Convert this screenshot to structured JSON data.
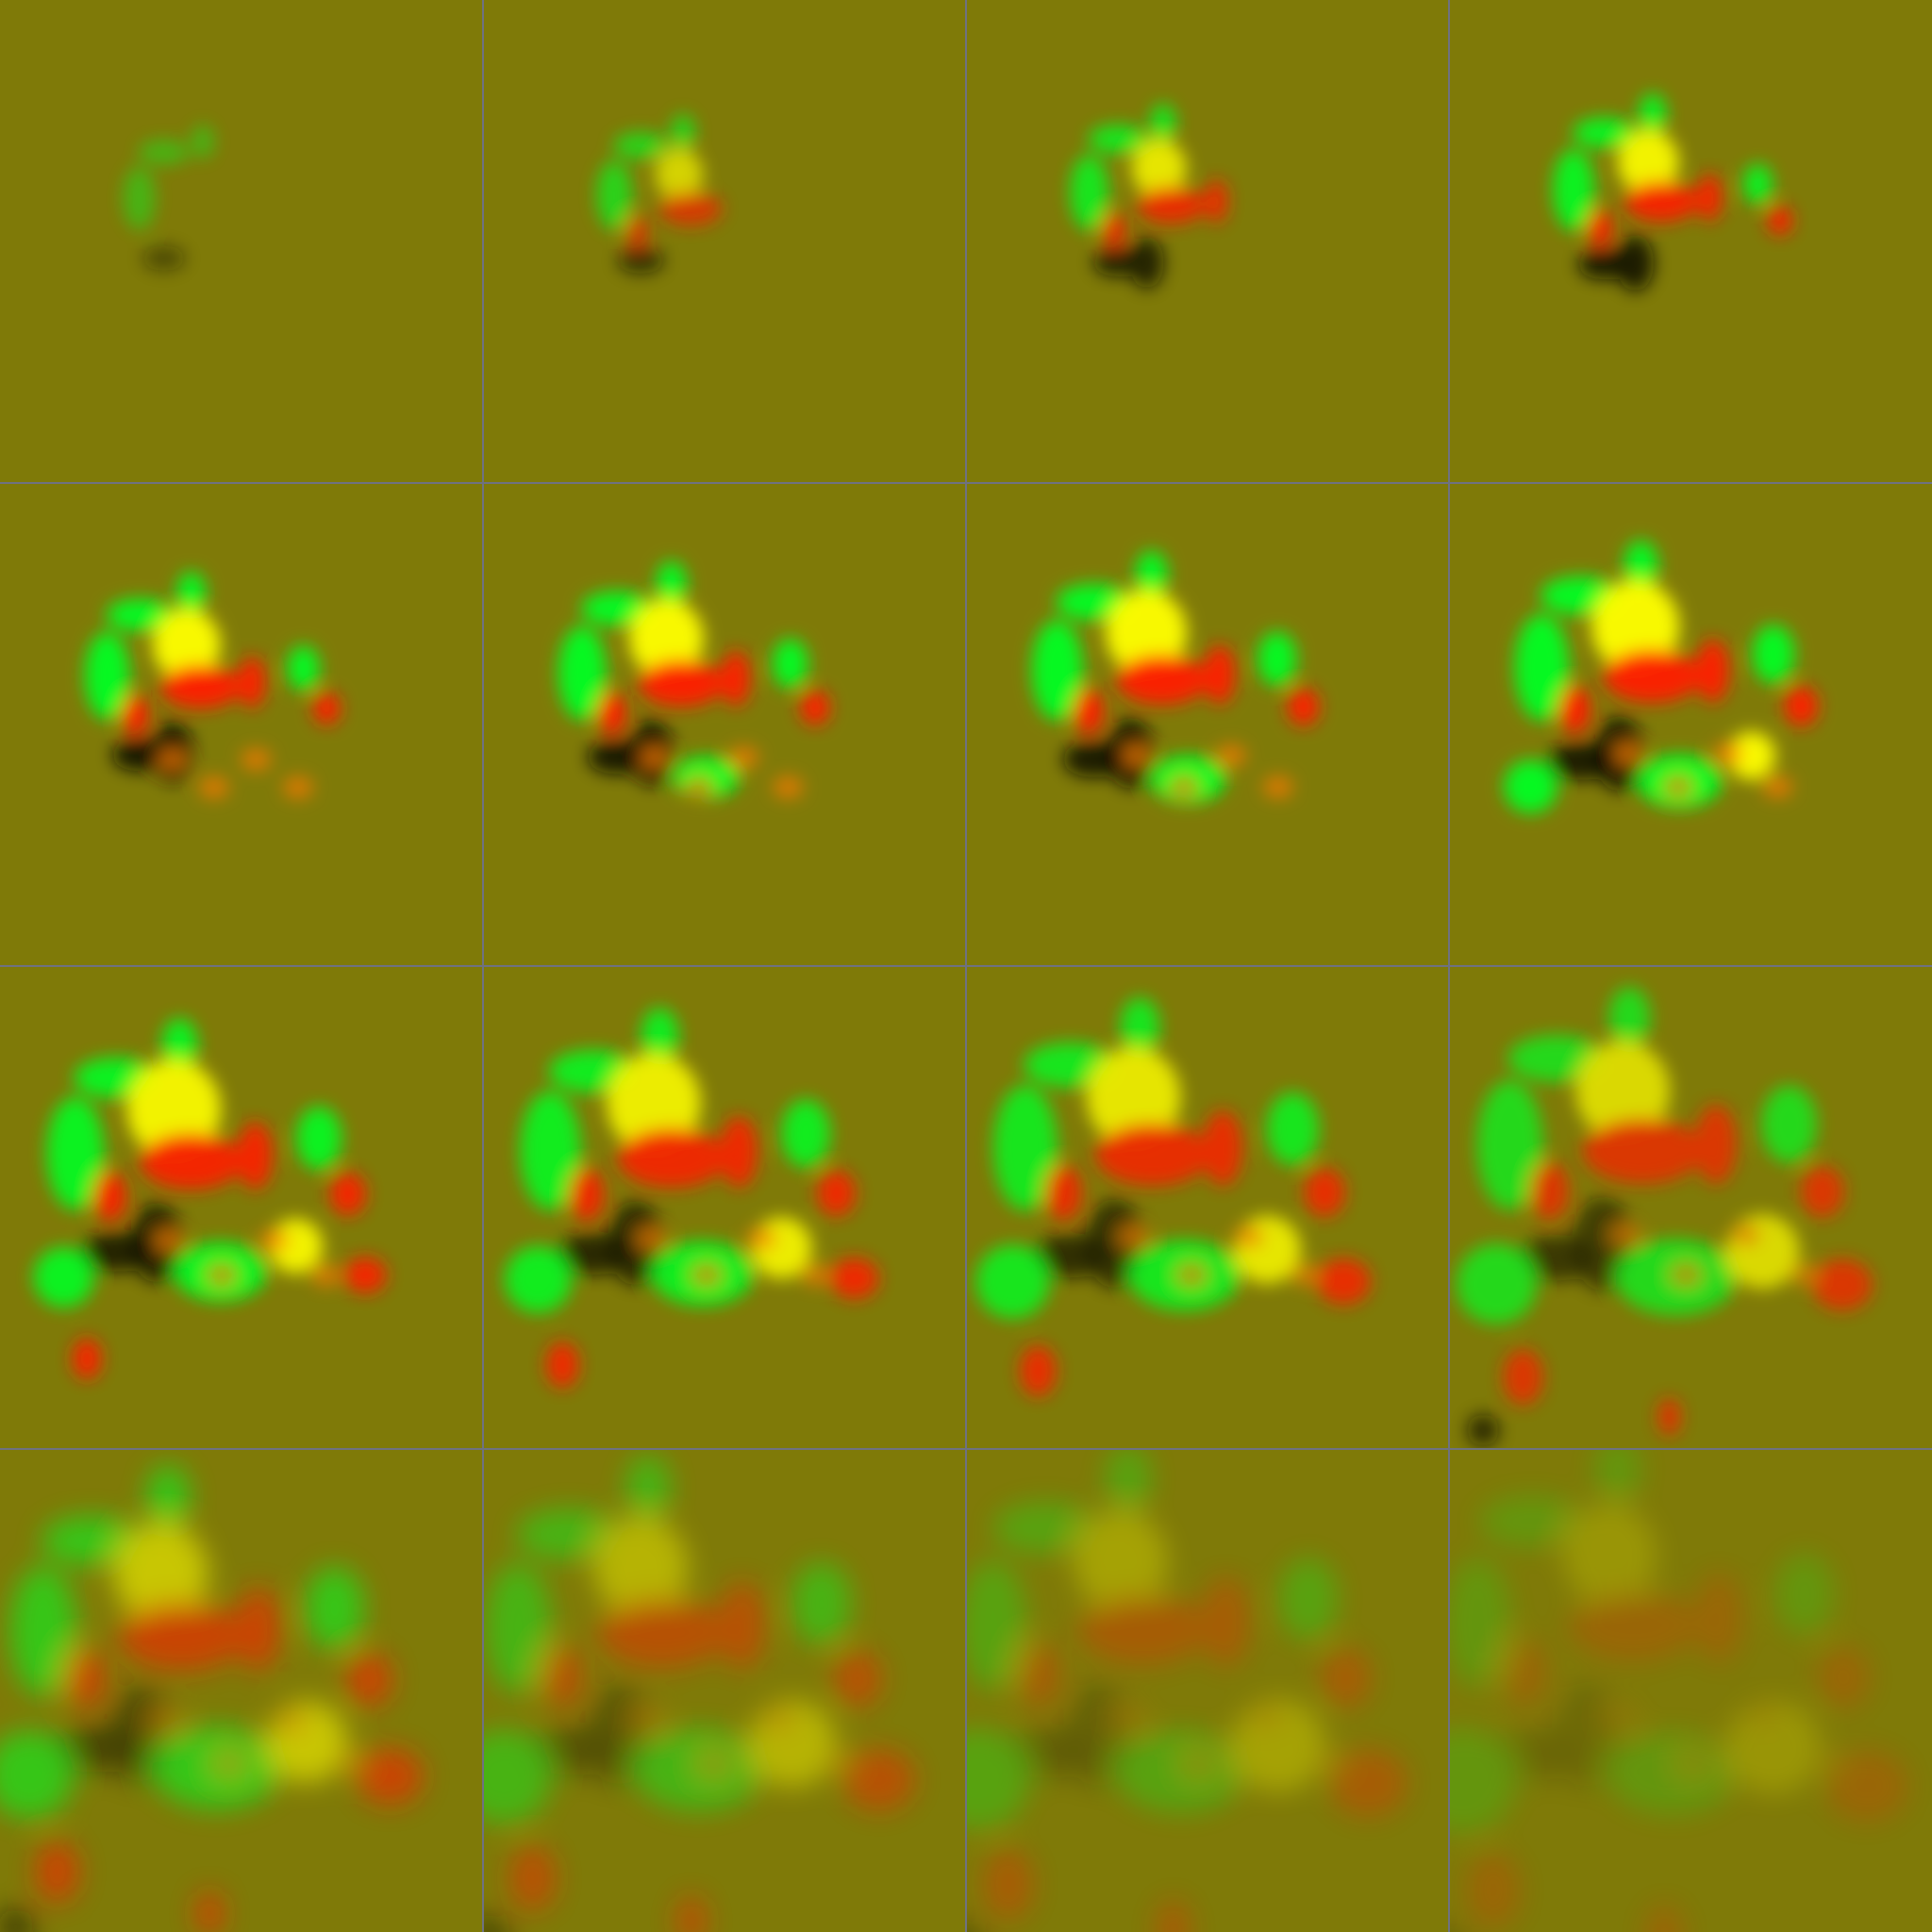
{
  "montage": {
    "rows": 4,
    "cols": 4,
    "frame_count": 16,
    "colors": {
      "background": "#7f7a08",
      "grid_line": "#6e7280",
      "positive": "#ffff00",
      "green": "#00ff22",
      "red": "#ff1a00",
      "dark": "#0d1200",
      "orange": "#ff7a00"
    },
    "frame_intensity": [
      0.45,
      0.7,
      0.85,
      0.95,
      1.0,
      1.0,
      1.0,
      1.0,
      0.95,
      0.9,
      0.85,
      0.75,
      0.6,
      0.45,
      0.32,
      0.22
    ]
  }
}
